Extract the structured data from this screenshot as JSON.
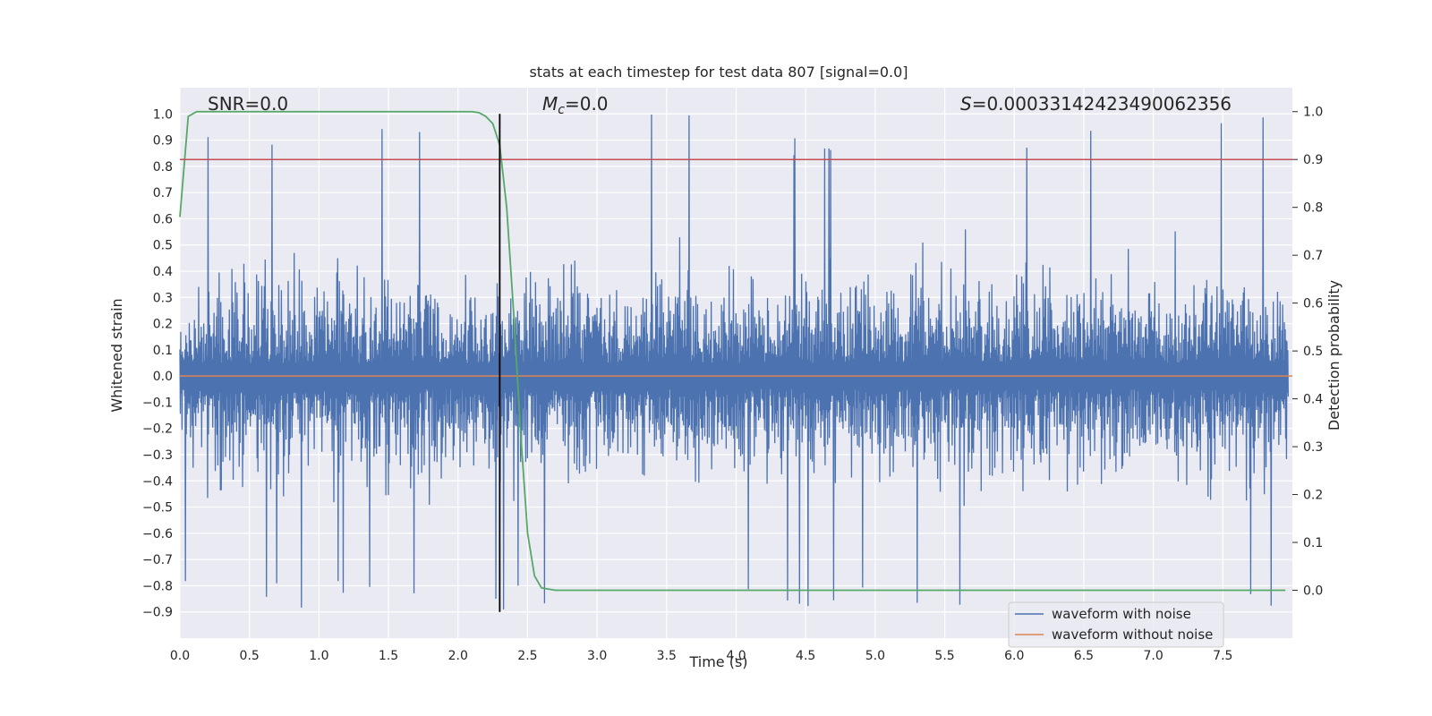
{
  "chart_data": {
    "type": "line",
    "title": "stats at each timestep for test data 807 [signal=0.0]",
    "xlabel": "Time (s)",
    "ylabel_left": "Whitened strain",
    "ylabel_right": "Detection probability",
    "xlim": [
      0.0,
      8.0
    ],
    "ylim_left": [
      -1.0,
      1.1
    ],
    "ylim_right": [
      -0.1,
      1.05
    ],
    "x_ticks": [
      0.0,
      0.5,
      1.0,
      1.5,
      2.0,
      2.5,
      3.0,
      3.5,
      4.0,
      4.5,
      5.0,
      5.5,
      6.0,
      6.5,
      7.0,
      7.5
    ],
    "x_tick_labels": [
      "0.0",
      "0.5",
      "1.0",
      "1.5",
      "2.0",
      "2.5",
      "3.0",
      "3.5",
      "4.0",
      "4.5",
      "5.0",
      "5.5",
      "6.0",
      "6.5",
      "7.0",
      "7.5"
    ],
    "y_left_ticks": [
      1.0,
      0.9,
      0.8,
      0.7,
      0.6,
      0.5,
      0.4,
      0.3,
      0.2,
      0.1,
      0.0,
      -0.1,
      -0.2,
      -0.3,
      -0.4,
      -0.5,
      -0.6,
      -0.7,
      -0.8,
      -0.9
    ],
    "y_left_tick_labels": [
      "1.0",
      "0.9",
      "0.8",
      "0.7",
      "0.6",
      "0.5",
      "0.4",
      "0.3",
      "0.2",
      "0.1",
      "0.0",
      "−0.1",
      "−0.2",
      "−0.3",
      "−0.4",
      "−0.5",
      "−0.6",
      "−0.7",
      "−0.8",
      "−0.9"
    ],
    "y_right_ticks": [
      1.0,
      0.9,
      0.8,
      0.7,
      0.6,
      0.5,
      0.4,
      0.3,
      0.2,
      0.1,
      0.0
    ],
    "y_right_tick_labels": [
      "1.0",
      "0.9",
      "0.8",
      "0.7",
      "0.6",
      "0.5",
      "0.4",
      "0.3",
      "0.2",
      "0.1",
      "0.0"
    ],
    "annotations": {
      "snr": "SNR=0.0",
      "mc_symbol": "M",
      "mc_sub": "c",
      "mc_value": "=0.0",
      "s_symbol": "S",
      "s_value": "=0.00033142423490062356"
    },
    "legend": {
      "placement": "lower-right",
      "entries": [
        "waveform with noise",
        "waveform without noise"
      ]
    },
    "grid": true,
    "colors": {
      "noisy": "#4c72b0",
      "clean": "#dd8452",
      "probability": "#55a868",
      "threshold": "#c44e52",
      "marker": "#000000",
      "background": "#eaeaf2"
    },
    "series": [
      {
        "name": "waveform with noise",
        "axis": "left",
        "description_values": "dense noise, range approx -0.9 to 1.0",
        "noise_envelope": {
          "upper_typical": 0.45,
          "lower_typical": -0.45,
          "peak_max": 1.0,
          "peak_min": -0.9
        }
      },
      {
        "name": "waveform without noise",
        "axis": "left",
        "x": [
          0.0,
          8.0
        ],
        "y": [
          0.0,
          0.0
        ]
      },
      {
        "axis": "right",
        "x": [
          0.0,
          0.06,
          0.12,
          0.2,
          0.5,
          1.0,
          1.5,
          2.0,
          2.1,
          2.15,
          2.2,
          2.25,
          2.3,
          2.35,
          2.4,
          2.45,
          2.5,
          2.55,
          2.6,
          2.7,
          3.0,
          4.0,
          5.0,
          6.0,
          7.0,
          7.95
        ],
        "y": [
          0.78,
          0.99,
          1.0,
          1.0,
          1.0,
          1.0,
          1.0,
          1.0,
          1.0,
          0.998,
          0.99,
          0.975,
          0.93,
          0.8,
          0.58,
          0.33,
          0.12,
          0.03,
          0.005,
          0.0,
          0.0,
          0.0,
          0.0,
          0.0,
          0.0,
          0.0
        ]
      },
      {
        "axis": "right",
        "x": [
          0.0,
          8.0
        ],
        "y": [
          0.9,
          0.9
        ]
      },
      {
        "axis": "left",
        "x": [
          2.3,
          2.3
        ],
        "y": [
          -0.9,
          1.0
        ]
      }
    ]
  }
}
